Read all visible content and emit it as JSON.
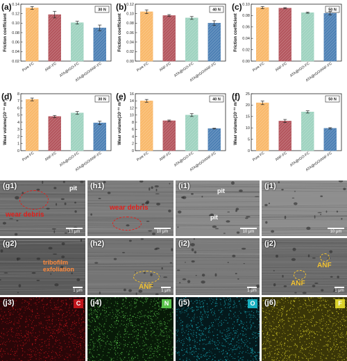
{
  "chart_data": [
    {
      "panel": "(a)",
      "type": "bar",
      "load": "30 N",
      "ylabel": "Friction coefficient",
      "categories": [
        "Pure FC",
        "ANF-FC",
        "ATA@rGO-FC",
        "ATA@rGO/ANF-FC"
      ],
      "values": [
        0.132,
        0.118,
        0.101,
        0.09
      ],
      "errors": [
        0.003,
        0.007,
        0.003,
        0.006
      ],
      "ylim": [
        0.02,
        0.14
      ],
      "yticks": [
        0.02,
        0.04,
        0.06,
        0.08,
        0.1,
        0.12,
        0.14
      ],
      "ytick_labels": [
        "0.02",
        "0.04",
        "0.06",
        "0.08",
        "0.10",
        "0.12",
        "0.14"
      ]
    },
    {
      "panel": "(b)",
      "type": "bar",
      "load": "40 N",
      "ylabel": "Friction coefficient",
      "categories": [
        "Pure FC",
        "ANF-FC",
        "ATA@rGO-FC",
        "ATA@rGO/ANF-FC"
      ],
      "values": [
        0.104,
        0.096,
        0.091,
        0.08
      ],
      "errors": [
        0.004,
        0.002,
        0.003,
        0.005
      ],
      "ylim": [
        0.0,
        0.12
      ],
      "yticks": [
        0.0,
        0.02,
        0.04,
        0.06,
        0.08,
        0.1,
        0.12
      ],
      "ytick_labels": [
        "0.00",
        "0.02",
        "0.04",
        "0.06",
        "0.08",
        "0.10",
        "0.12"
      ]
    },
    {
      "panel": "(c)",
      "type": "bar",
      "load": "50 N",
      "ylabel": "Friction coefficient",
      "categories": [
        "Pure FC",
        "ANF-FC",
        "ATA@rGO-FC",
        "ATA@rGO/ANF-FC"
      ],
      "values": [
        0.094,
        0.093,
        0.085,
        0.084
      ],
      "errors": [
        0.002,
        0.001,
        0.001,
        0.003
      ],
      "ylim": [
        0.0,
        0.1
      ],
      "yticks": [
        0.0,
        0.02,
        0.04,
        0.06,
        0.08,
        0.1
      ],
      "ytick_labels": [
        "0.00",
        "0.02",
        "0.04",
        "0.06",
        "0.08",
        "0.10"
      ]
    },
    {
      "panel": "(d)",
      "type": "bar",
      "load": "30 N",
      "ylabel": "Wear volume(10⁻¹¹ m³)",
      "categories": [
        "Pure FC",
        "ANF-FC",
        "ATA@rGO-FC",
        "ATA@rGO/ANF-FC"
      ],
      "values": [
        7.2,
        4.8,
        5.3,
        3.9
      ],
      "errors": [
        0.2,
        0.15,
        0.2,
        0.25
      ],
      "ylim": [
        0,
        8
      ],
      "yticks": [
        0,
        1,
        2,
        3,
        4,
        5,
        6,
        7,
        8
      ],
      "ytick_labels": [
        "0",
        "1",
        "2",
        "3",
        "4",
        "5",
        "6",
        "7",
        "8"
      ]
    },
    {
      "panel": "(e)",
      "type": "bar",
      "load": "40 N",
      "ylabel": "Wear volume(10⁻¹¹ m³)",
      "categories": [
        "Pure FC",
        "ANF-FC",
        "ATA@rGO-FC",
        "ATA@rGO/ANF-FC"
      ],
      "values": [
        14.0,
        8.4,
        10.0,
        6.2
      ],
      "errors": [
        0.4,
        0.2,
        0.4,
        0.1
      ],
      "ylim": [
        0,
        16
      ],
      "yticks": [
        0,
        2,
        4,
        6,
        8,
        10,
        12,
        14,
        16
      ],
      "ytick_labels": [
        "0",
        "2",
        "4",
        "6",
        "8",
        "10",
        "12",
        "14",
        "16"
      ]
    },
    {
      "panel": "(f)",
      "type": "bar",
      "load": "50 N",
      "ylabel": "Wear volume(10⁻¹¹ m³)",
      "categories": [
        "Pure FC",
        "ANF-FC",
        "ATA@rGO-FC",
        "ATA@rGO/ANF-FC"
      ],
      "values": [
        21.0,
        13.0,
        17.0,
        9.8
      ],
      "errors": [
        0.8,
        0.7,
        0.5,
        0.3
      ],
      "ylim": [
        0,
        25
      ],
      "yticks": [
        0,
        5,
        10,
        15,
        20,
        25
      ],
      "ytick_labels": [
        "0",
        "5",
        "10",
        "15",
        "20",
        "25"
      ]
    }
  ],
  "bar_colors": [
    "#f9b96b",
    "#b4565e",
    "#9fd3c0",
    "#4e81b5"
  ],
  "micrographs": [
    {
      "label": "(g1)",
      "scale": "10 μm",
      "bg": "#6f6f6f"
    },
    {
      "label": "(h1)",
      "scale": "10 μm",
      "bg": "#7c7c7c"
    },
    {
      "label": "(i1)",
      "scale": "10 μm",
      "bg": "#8a8a8a"
    },
    {
      "label": "(j1)",
      "scale": "10 μm",
      "bg": "#8e8e8e"
    },
    {
      "label": "(g2)",
      "scale": "1 μm",
      "bg": "#5a5a5a"
    },
    {
      "label": "(h2)",
      "scale": "1 μm",
      "bg": "#747474"
    },
    {
      "label": "(i2)",
      "scale": "1 μm",
      "bg": "#7a7a7a"
    },
    {
      "label": "(j2)",
      "scale": "1 μm",
      "bg": "#6b6b6b"
    }
  ],
  "annotations": {
    "wear_debris_1": "wear debris",
    "pit_1": "pit",
    "wear_debris_2": "wear debris",
    "pit_2": "pit",
    "pit_3": "pit",
    "tribofilm": "tribofilm\nexfoliation",
    "anf_h2": "ANF",
    "anf_j2_a": "ANF",
    "anf_j2_b": "ANF"
  },
  "eds_maps": [
    {
      "label": "(j3)",
      "element": "C",
      "color": "#c0151b",
      "bg": "#2a0608"
    },
    {
      "label": "(j4)",
      "element": "N",
      "color": "#58c24a",
      "bg": "#081a08"
    },
    {
      "label": "(j5)",
      "element": "O",
      "color": "#19b0c0",
      "bg": "#04191c"
    },
    {
      "label": "(j6)",
      "element": "F",
      "color": "#d9d12a",
      "bg": "#3a3608"
    }
  ]
}
